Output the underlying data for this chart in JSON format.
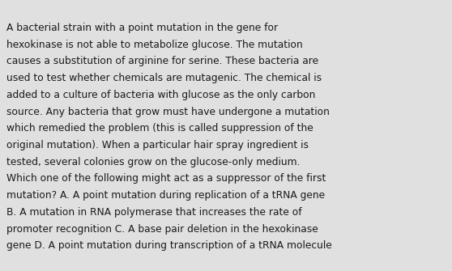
{
  "background_color": "#e0e0e0",
  "text_color": "#1a1a1a",
  "font_size": 8.8,
  "font_family": "DejaVu Sans",
  "lines": [
    "A bacterial strain with a point mutation in the gene for",
    "hexokinase is not able to metabolize glucose. The mutation",
    "causes a substitution of arginine for serine. These bacteria are",
    "used to test whether chemicals are mutagenic. The chemical is",
    "added to a culture of bacteria with glucose as the only carbon",
    "source. Any bacteria that grow must have undergone a mutation",
    "which remedied the problem (this is called suppression of the",
    "original mutation). When a particular hair spray ingredient is",
    "tested, several colonies grow on the glucose-only medium.",
    "Which one of the following might act as a suppressor of the first",
    "mutation? A. A point mutation during replication of a tRNA gene",
    "B. A mutation in RNA polymerase that increases the rate of",
    "promoter recognition C. A base pair deletion in the hexokinase",
    "gene D. A point mutation during transcription of a tRNA molecule"
  ]
}
